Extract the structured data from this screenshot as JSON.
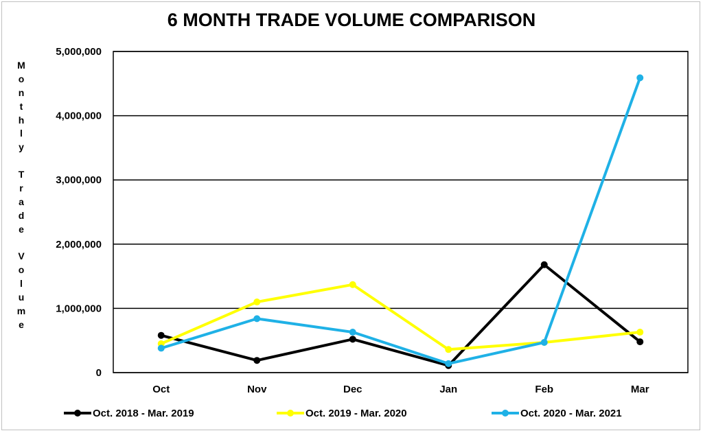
{
  "chart_data": {
    "type": "line",
    "title": "6 MONTH TRADE VOLUME COMPARISON",
    "xlabel": "",
    "ylabel": "Monthly Trade Volume",
    "categories": [
      "Oct",
      "Nov",
      "Dec",
      "Jan",
      "Feb",
      "Mar"
    ],
    "ylim": [
      0,
      5000000
    ],
    "yticks": [
      0,
      1000000,
      2000000,
      3000000,
      4000000,
      5000000
    ],
    "ytick_labels": [
      "0",
      "1,000,000",
      "2,000,000",
      "3,000,000",
      "4,000,000",
      "5,000,000"
    ],
    "grid": "horizontal",
    "legend_position": "bottom",
    "series": [
      {
        "name": "Oct. 2018 - Mar. 2019",
        "color": "#000000",
        "values": [
          580000,
          190000,
          520000,
          110000,
          1680000,
          480000
        ]
      },
      {
        "name": "Oct. 2019 - Mar. 2020",
        "color": "#ffff00",
        "values": [
          450000,
          1100000,
          1370000,
          360000,
          470000,
          630000
        ]
      },
      {
        "name": "Oct. 2020 - Mar. 2021",
        "color": "#1fb1e6",
        "values": [
          380000,
          840000,
          630000,
          140000,
          470000,
          4590000
        ]
      }
    ]
  }
}
